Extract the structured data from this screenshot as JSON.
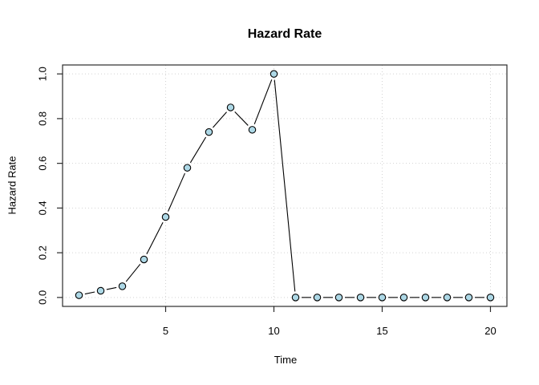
{
  "chart_data": {
    "type": "line",
    "title": "Hazard Rate",
    "xlabel": "Time",
    "ylabel": "Hazard Rate",
    "x": [
      1,
      2,
      3,
      4,
      5,
      6,
      7,
      8,
      9,
      10,
      11,
      12,
      13,
      14,
      15,
      16,
      17,
      18,
      19,
      20
    ],
    "y": [
      0.01,
      0.03,
      0.05,
      0.17,
      0.36,
      0.58,
      0.74,
      0.85,
      0.75,
      1.0,
      0.0,
      0.0,
      0.0,
      0.0,
      0.0,
      0.0,
      0.0,
      0.0,
      0.0,
      0.0
    ],
    "xlim": [
      0.24,
      20.76
    ],
    "ylim": [
      -0.04,
      1.04
    ],
    "x_ticks": [
      5,
      10,
      15,
      20
    ],
    "x_tick_labels": [
      "5",
      "10",
      "15",
      "20"
    ],
    "y_ticks": [
      0.0,
      0.2,
      0.4,
      0.6,
      0.8,
      1.0
    ],
    "y_tick_labels": [
      "0.0",
      "0.2",
      "0.4",
      "0.6",
      "0.8",
      "1.0"
    ],
    "grid": true,
    "legend": "none",
    "marker": "circle-with-gapped-line",
    "colors": {
      "marker_fill": "#ADD8E6",
      "marker_stroke": "#000000",
      "line": "#000000",
      "grid": "#D3D3D3",
      "axis": "#2B2B2B",
      "text": "#000000",
      "background": "#FFFFFF"
    }
  }
}
